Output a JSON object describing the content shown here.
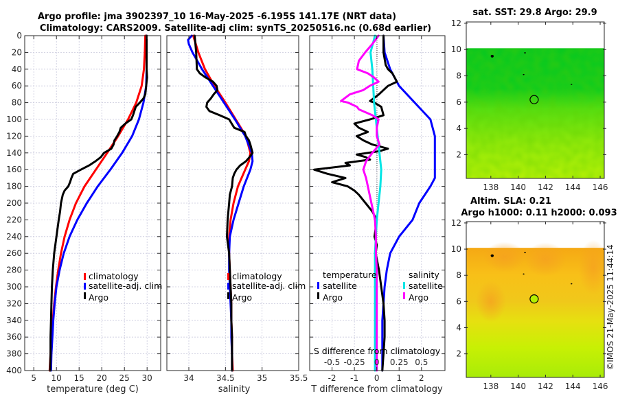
{
  "figure": {
    "title_line1": "Argo profile: jma 3902397_10 16-May-2025 -6.195S 141.17E (NRT data)",
    "title_line2": "Climatology: CARS2009. Satellite-adj clim: synTS_20250516.nc (0.68d earlier)",
    "copyright": "©IMOS 21-May-2025 11:44:14"
  },
  "colors": {
    "climatology": "#ff0000",
    "satellite_adj": "#0000ff",
    "argo": "#000000",
    "sal_satellite": "#00e5e5",
    "sal_argo": "#ff00ff"
  },
  "chart_data": [
    {
      "id": "temperature",
      "type": "line",
      "xlabel": "temperature (deg C)",
      "ylabel": "",
      "xlim": [
        3,
        33
      ],
      "ylim": [
        400,
        0
      ],
      "xticks": [
        5,
        10,
        15,
        20,
        25,
        30
      ],
      "xtick_labels": [
        "5",
        "10",
        "15",
        "20",
        "25",
        "30"
      ],
      "yticks": [
        0,
        20,
        40,
        60,
        80,
        100,
        120,
        140,
        160,
        180,
        200,
        220,
        240,
        260,
        280,
        300,
        320,
        340,
        360,
        380,
        400
      ],
      "ytick_labels": [
        "0",
        "20",
        "40",
        "60",
        "80",
        "100",
        "120",
        "140",
        "160",
        "180",
        "200",
        "220",
        "240",
        "260",
        "280",
        "300",
        "320",
        "340",
        "360",
        "380",
        "400"
      ],
      "grid": true,
      "legend": {
        "position": "middle-right",
        "entries": [
          "climatology",
          "satellite-adj. clim",
          "Argo"
        ]
      },
      "series": [
        {
          "name": "climatology",
          "color_key": "climatology",
          "depth": [
            0,
            20,
            40,
            60,
            80,
            100,
            120,
            140,
            160,
            180,
            200,
            220,
            240,
            260,
            280,
            300,
            320,
            340,
            360,
            380,
            400
          ],
          "values": [
            29.6,
            29.5,
            29.3,
            28.8,
            27.6,
            25.8,
            23.6,
            21.2,
            18.7,
            16.2,
            14.3,
            12.9,
            11.8,
            11.0,
            10.4,
            9.9,
            9.5,
            9.2,
            8.9,
            8.7,
            8.5
          ]
        },
        {
          "name": "satellite-adj. clim",
          "color_key": "satellite_adj",
          "depth": [
            0,
            20,
            40,
            60,
            80,
            100,
            120,
            140,
            160,
            180,
            200,
            220,
            240,
            260,
            280,
            300,
            320,
            340,
            360,
            380,
            400
          ],
          "values": [
            29.9,
            29.9,
            29.9,
            29.8,
            29.2,
            28.2,
            26.7,
            24.5,
            21.9,
            19.1,
            16.7,
            14.6,
            12.9,
            11.6,
            10.7,
            10.0,
            9.6,
            9.3,
            9.1,
            8.9,
            8.8
          ]
        },
        {
          "name": "Argo",
          "color_key": "argo",
          "depth": [
            0,
            20,
            40,
            50,
            55,
            60,
            70,
            75,
            80,
            85,
            90,
            95,
            100,
            105,
            110,
            115,
            120,
            125,
            130,
            135,
            140,
            145,
            150,
            155,
            160,
            165,
            170,
            175,
            180,
            185,
            190,
            200,
            210,
            220,
            240,
            260,
            280,
            300,
            320,
            340,
            360,
            380,
            400
          ],
          "values": [
            29.9,
            29.9,
            29.9,
            30.0,
            29.9,
            29.8,
            29.6,
            29.2,
            28.4,
            27.5,
            27.2,
            26.9,
            26.5,
            25.2,
            24.2,
            23.9,
            23.4,
            22.8,
            22.6,
            22.1,
            20.5,
            19.8,
            18.6,
            17.2,
            15.4,
            13.7,
            13.3,
            13.0,
            12.6,
            11.8,
            11.4,
            11.0,
            10.8,
            10.5,
            10.0,
            9.5,
            9.2,
            9.0,
            8.9,
            8.8,
            8.7,
            8.7,
            8.6
          ]
        }
      ]
    },
    {
      "id": "salinity",
      "type": "line",
      "xlabel": "salinity",
      "xlim": [
        33.7,
        35.5
      ],
      "ylim": [
        400,
        0
      ],
      "xticks": [
        34,
        34.5,
        35,
        35.5
      ],
      "xtick_labels": [
        "34",
        "34.5",
        "35",
        "35.5"
      ],
      "grid": true,
      "legend": {
        "position": "middle-center",
        "entries": [
          "climatology",
          "satellite-adj. clim",
          "Argo"
        ]
      },
      "series": [
        {
          "name": "climatology",
          "color_key": "climatology",
          "depth": [
            0,
            20,
            40,
            60,
            80,
            100,
            120,
            140,
            150,
            160,
            180,
            200,
            220,
            240,
            260,
            280,
            300,
            320,
            340,
            360,
            380,
            400
          ],
          "values": [
            34.06,
            34.13,
            34.22,
            34.35,
            34.5,
            34.64,
            34.78,
            34.84,
            34.82,
            34.77,
            34.67,
            34.61,
            34.57,
            34.55,
            34.55,
            34.56,
            34.57,
            34.58,
            34.58,
            34.59,
            34.59,
            34.6
          ]
        },
        {
          "name": "satellite-adj. clim",
          "color_key": "satellite_adj",
          "depth": [
            0,
            5,
            10,
            20,
            40,
            60,
            80,
            100,
            120,
            140,
            150,
            160,
            180,
            200,
            220,
            240,
            260,
            280,
            300,
            320,
            340,
            360,
            380,
            400
          ],
          "values": [
            34.04,
            33.99,
            34.0,
            34.05,
            34.18,
            34.33,
            34.48,
            34.63,
            34.77,
            34.86,
            34.87,
            34.84,
            34.75,
            34.68,
            34.61,
            34.56,
            34.55,
            34.55,
            34.56,
            34.57,
            34.58,
            34.58,
            34.59,
            34.59
          ]
        },
        {
          "name": "Argo",
          "color_key": "argo",
          "depth": [
            0,
            20,
            40,
            45,
            50,
            55,
            60,
            65,
            70,
            75,
            80,
            85,
            90,
            95,
            100,
            110,
            115,
            120,
            125,
            130,
            140,
            145,
            150,
            155,
            160,
            165,
            170,
            180,
            190,
            200,
            220,
            240,
            260,
            280,
            300,
            320,
            340,
            360,
            380,
            400
          ],
          "values": [
            34.08,
            34.1,
            34.11,
            34.15,
            34.23,
            34.33,
            34.38,
            34.39,
            34.34,
            34.3,
            34.25,
            34.24,
            34.28,
            34.42,
            34.55,
            34.62,
            34.76,
            34.78,
            34.82,
            34.84,
            34.87,
            34.83,
            34.78,
            34.7,
            34.65,
            34.62,
            34.6,
            34.59,
            34.56,
            34.55,
            34.53,
            34.52,
            34.55,
            34.56,
            34.57,
            34.58,
            34.58,
            34.59,
            34.59,
            34.59
          ]
        }
      ]
    },
    {
      "id": "difference",
      "type": "line",
      "xlabel": "T difference from climatology",
      "xlim": [
        -3,
        3.05
      ],
      "ylim": [
        400,
        0
      ],
      "xticks": [
        -2,
        -1,
        0,
        1,
        2
      ],
      "xtick_labels": [
        "-2",
        "-1",
        "0",
        "1",
        "2"
      ],
      "secondary_xlabel": "S difference from climatology",
      "secondary_xlim": [
        -0.75,
        0.7625
      ],
      "secondary_xticks": [
        -0.5,
        -0.25,
        0,
        0.25,
        0.5
      ],
      "secondary_xtick_labels": [
        "-0.5",
        "-0.25",
        "0",
        "0.25",
        "0.5"
      ],
      "zero_line": true,
      "grid": true,
      "legend": {
        "position": "lower-middle",
        "temperature_title": "temperature",
        "salinity_title": "salinity",
        "temperature_entries": [
          "satellite",
          "Argo"
        ],
        "salinity_entries": [
          "satellite",
          "Argo"
        ]
      },
      "series": [
        {
          "name": "temperature satellite",
          "axis": "T",
          "color_key": "satellite_adj",
          "depth": [
            0,
            20,
            40,
            60,
            80,
            100,
            120,
            140,
            160,
            170,
            180,
            200,
            220,
            240,
            260,
            280,
            300,
            320,
            340,
            360,
            380,
            400
          ],
          "values": [
            0.3,
            0.35,
            0.6,
            1.0,
            1.7,
            2.4,
            2.6,
            2.6,
            2.6,
            2.6,
            2.4,
            1.9,
            1.6,
            1.0,
            0.6,
            0.45,
            0.35,
            0.3,
            0.25,
            0.25,
            0.25,
            0.25
          ]
        },
        {
          "name": "temperature Argo",
          "axis": "T",
          "color_key": "argo",
          "depth": [
            0,
            20,
            35,
            40,
            45,
            55,
            60,
            70,
            78,
            80,
            85,
            95,
            100,
            105,
            110,
            115,
            120,
            125,
            130,
            135,
            138,
            142,
            145,
            148,
            152,
            155,
            160,
            165,
            170,
            175,
            180,
            185,
            190,
            200,
            210,
            220,
            240,
            250,
            260,
            280,
            300,
            320,
            340,
            360,
            380,
            400
          ],
          "values": [
            0.3,
            0.3,
            0.4,
            0.5,
            0.7,
            0.9,
            0.5,
            0.1,
            -0.3,
            -0.1,
            0.2,
            0.3,
            -0.3,
            -1.0,
            -0.8,
            -0.4,
            -0.9,
            -0.6,
            -0.2,
            0.5,
            0.1,
            -0.9,
            -0.5,
            -0.3,
            -1.4,
            -1.2,
            -2.8,
            -2.2,
            -1.4,
            -2.0,
            -1.3,
            -1.0,
            -0.8,
            -0.5,
            -0.2,
            0.0,
            -0.1,
            0.0,
            -0.05,
            0.1,
            0.2,
            0.3,
            0.35,
            0.35,
            0.3,
            0.25
          ]
        },
        {
          "name": "salinity satellite",
          "axis": "S",
          "color_key": "sal_satellite",
          "depth": [
            0,
            20,
            40,
            60,
            80,
            100,
            120,
            140,
            160,
            180,
            200,
            220,
            240,
            260,
            280,
            300,
            320,
            340,
            360,
            380,
            400
          ],
          "values": [
            -0.02,
            -0.07,
            -0.05,
            -0.04,
            -0.03,
            -0.01,
            0.01,
            0.03,
            0.05,
            0.04,
            0.02,
            0.0,
            -0.01,
            -0.02,
            -0.02,
            -0.02,
            -0.02,
            -0.02,
            -0.02,
            -0.02,
            -0.02
          ]
        },
        {
          "name": "salinity Argo",
          "axis": "S",
          "color_key": "sal_argo",
          "depth": [
            0,
            10,
            20,
            30,
            40,
            45,
            50,
            55,
            60,
            65,
            70,
            78,
            80,
            85,
            88,
            95,
            100,
            110,
            120,
            130,
            140,
            150,
            160,
            170,
            180,
            190,
            200,
            210,
            220,
            240,
            260,
            280,
            300,
            320,
            340,
            360,
            380,
            400
          ],
          "values": [
            0.02,
            -0.05,
            -0.13,
            -0.2,
            -0.22,
            -0.1,
            -0.03,
            0.02,
            -0.08,
            -0.15,
            -0.3,
            -0.4,
            -0.32,
            -0.22,
            -0.2,
            -0.05,
            0.02,
            0.0,
            0.0,
            0.03,
            -0.05,
            -0.12,
            -0.15,
            -0.12,
            -0.1,
            -0.08,
            -0.06,
            -0.04,
            -0.02,
            -0.01,
            -0.01,
            0.0,
            0.0,
            0.0,
            0.0,
            0.0,
            0.0,
            0.0
          ]
        }
      ]
    },
    {
      "id": "sst_map",
      "type": "heatmap",
      "title": "sat. SST: 29.8 Argo: 29.9",
      "xlim": [
        136.2,
        146.3
      ],
      "ylim": [
        0.2,
        12.1
      ],
      "xticks": [
        138,
        140,
        142,
        144,
        146
      ],
      "xtick_labels": [
        "138",
        "140",
        "142",
        "144",
        "146"
      ],
      "yticks": [
        2,
        4,
        6,
        8,
        10,
        12
      ],
      "ytick_labels": [
        "2",
        "4",
        "6",
        "8",
        "10",
        "12"
      ],
      "data_top": 10.1,
      "marker": {
        "lon": 141.17,
        "lat": 6.195
      },
      "gradient": [
        {
          "lat": 10.1,
          "color": "#0ac81e"
        },
        {
          "lat": 7.0,
          "color": "#12cc1c"
        },
        {
          "lat": 5.5,
          "color": "#55dd10"
        },
        {
          "lat": 3.0,
          "color": "#8ee80a"
        },
        {
          "lat": 0.2,
          "color": "#b4f006"
        }
      ]
    },
    {
      "id": "sla_map",
      "type": "heatmap",
      "title_line1": "Altim. SLA: 0.21",
      "title_line2": "Argo h1000: 0.11 h2000: 0.093",
      "xlim": [
        136.2,
        146.3
      ],
      "ylim": [
        0.2,
        12.1
      ],
      "xticks": [
        138,
        140,
        142,
        144,
        146
      ],
      "xtick_labels": [
        "138",
        "140",
        "142",
        "144",
        "146"
      ],
      "yticks": [
        2,
        4,
        6,
        8,
        10,
        12
      ],
      "ytick_labels": [
        "2",
        "4",
        "6",
        "8",
        "10",
        "12"
      ],
      "data_top": 10.1,
      "marker": {
        "lon": 141.17,
        "lat": 6.195,
        "fill": "#b4f000"
      },
      "gradient": [
        {
          "lat": 10.1,
          "color": "#f5a814"
        },
        {
          "lat": 8.0,
          "color": "#f8c018"
        },
        {
          "lat": 6.0,
          "color": "#f0c81a"
        },
        {
          "lat": 4.5,
          "color": "#e6e010"
        },
        {
          "lat": 2.5,
          "color": "#c8f004"
        },
        {
          "lat": 0.2,
          "color": "#a8ec08"
        }
      ]
    }
  ]
}
